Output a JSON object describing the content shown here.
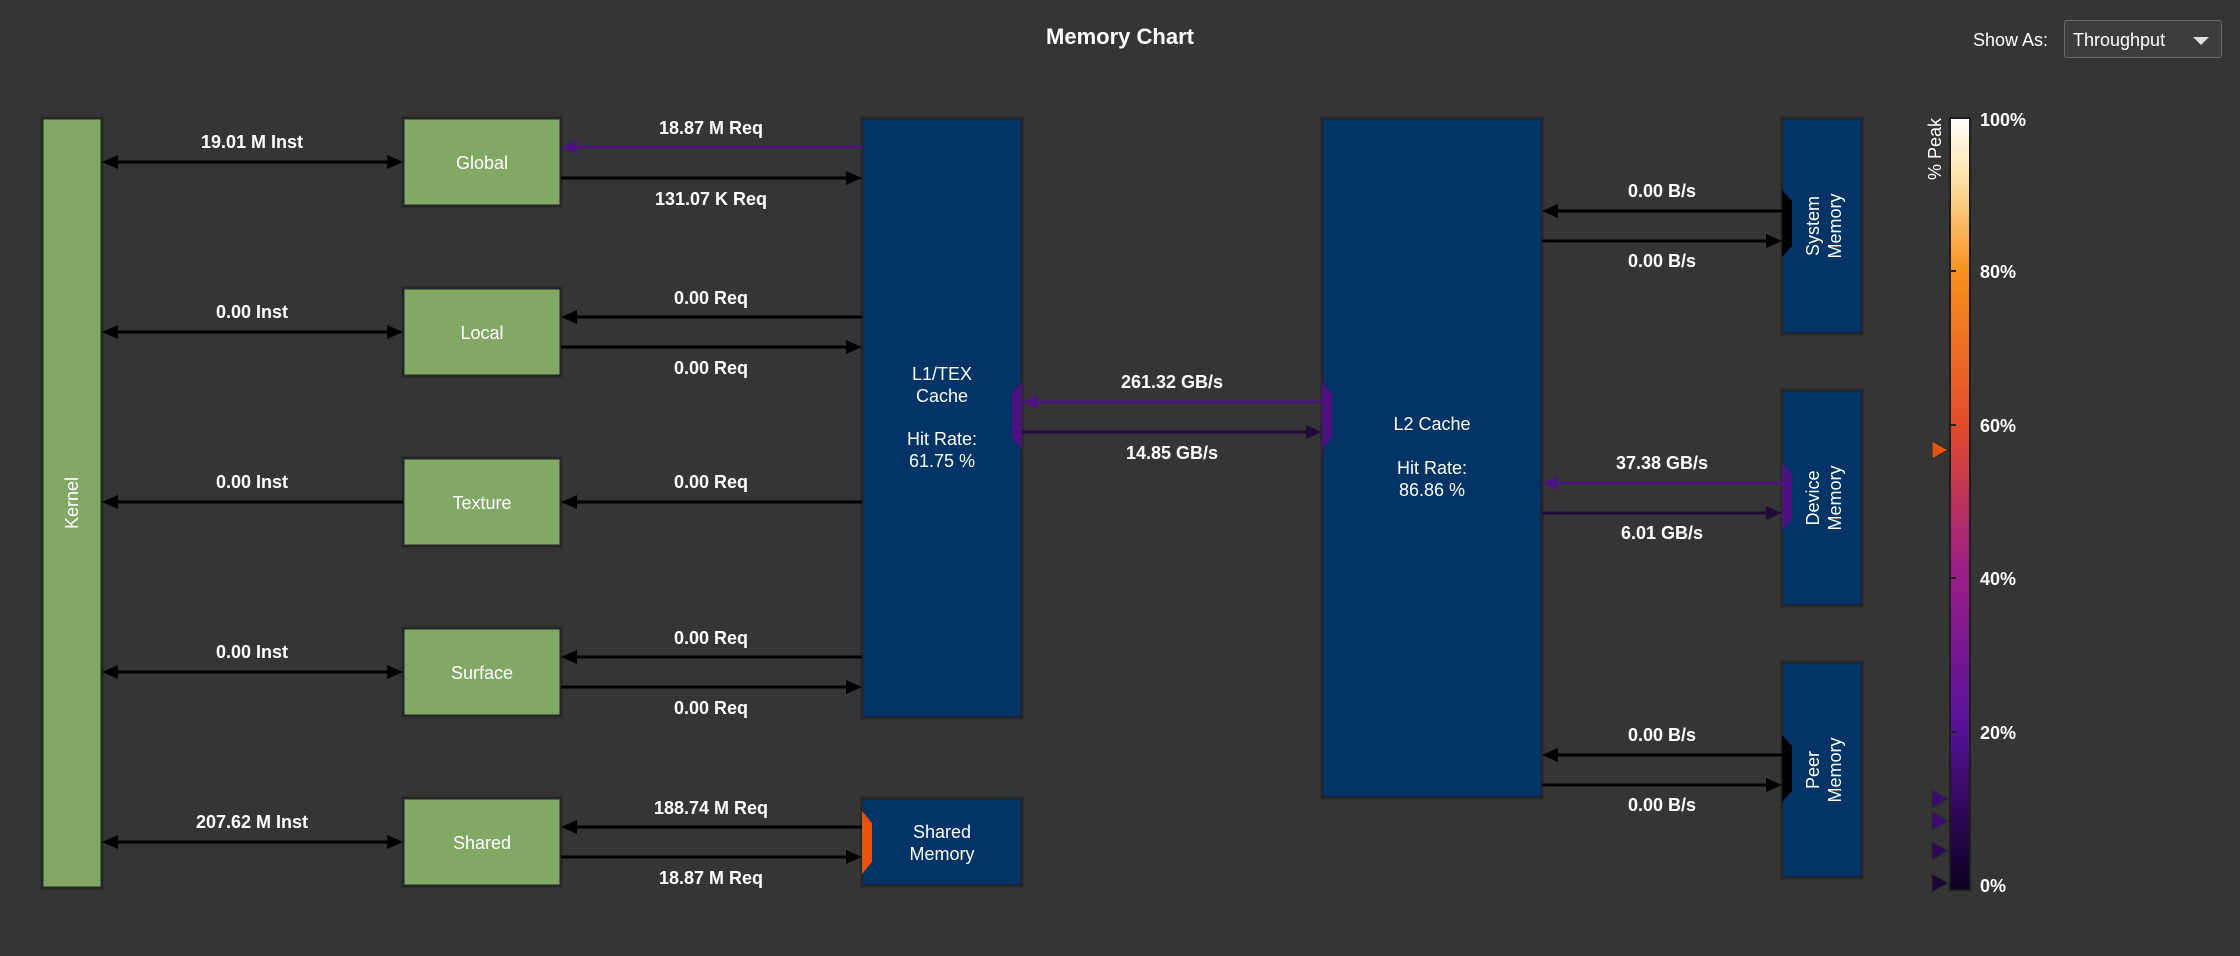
{
  "title": "Memory Chart",
  "show_as": {
    "label": "Show As:",
    "value": "Throughput"
  },
  "colors": {
    "background": "#353535",
    "unit_green": "#82a866",
    "cache_blue": "#003366",
    "purple_link": "#4b1280",
    "black_link": "#000000",
    "orange_port": "#e8540c"
  },
  "units": {
    "kernel": "Kernel",
    "global": "Global",
    "local": "Local",
    "texture": "Texture",
    "surface": "Surface",
    "shared": "Shared"
  },
  "caches": {
    "l1": {
      "line1": "L1/TEX",
      "line2": "Cache",
      "hit_label": "Hit Rate:",
      "hit_value": "61.75 %"
    },
    "shared_memory": {
      "line1": "Shared",
      "line2": "Memory"
    },
    "l2": {
      "line1": "L2 Cache",
      "hit_label": "Hit Rate:",
      "hit_value": "86.86 %"
    }
  },
  "memories": {
    "system": {
      "line1": "System",
      "line2": "Memory"
    },
    "device": {
      "line1": "Device",
      "line2": "Memory"
    },
    "peer": {
      "line1": "Peer",
      "line2": "Memory"
    }
  },
  "links": {
    "kernel_global": "19.01 M Inst",
    "kernel_local": "0.00 Inst",
    "kernel_texture": "0.00 Inst",
    "kernel_surface": "0.00 Inst",
    "kernel_shared": "207.62 M Inst",
    "global_l1_in": "18.87 M Req",
    "global_l1_out": "131.07 K Req",
    "local_l1_in": "0.00 Req",
    "local_l1_out": "0.00 Req",
    "texture_l1": "0.00 Req",
    "surface_l1_in": "0.00 Req",
    "surface_l1_out": "0.00 Req",
    "shared_in": "188.74 M Req",
    "shared_out": "18.87 M Req",
    "l2_l1": "261.32 GB/s",
    "l1_l2": "14.85 GB/s",
    "system_in": "0.00 B/s",
    "system_out": "0.00 B/s",
    "device_in": "37.38 GB/s",
    "device_out": "6.01 GB/s",
    "peer_in": "0.00 B/s",
    "peer_out": "0.00 B/s"
  },
  "legend": {
    "title": "% Peak",
    "ticks": [
      "100%",
      "80%",
      "60%",
      "40%",
      "20%",
      "0%"
    ],
    "marker_percent": 57
  }
}
